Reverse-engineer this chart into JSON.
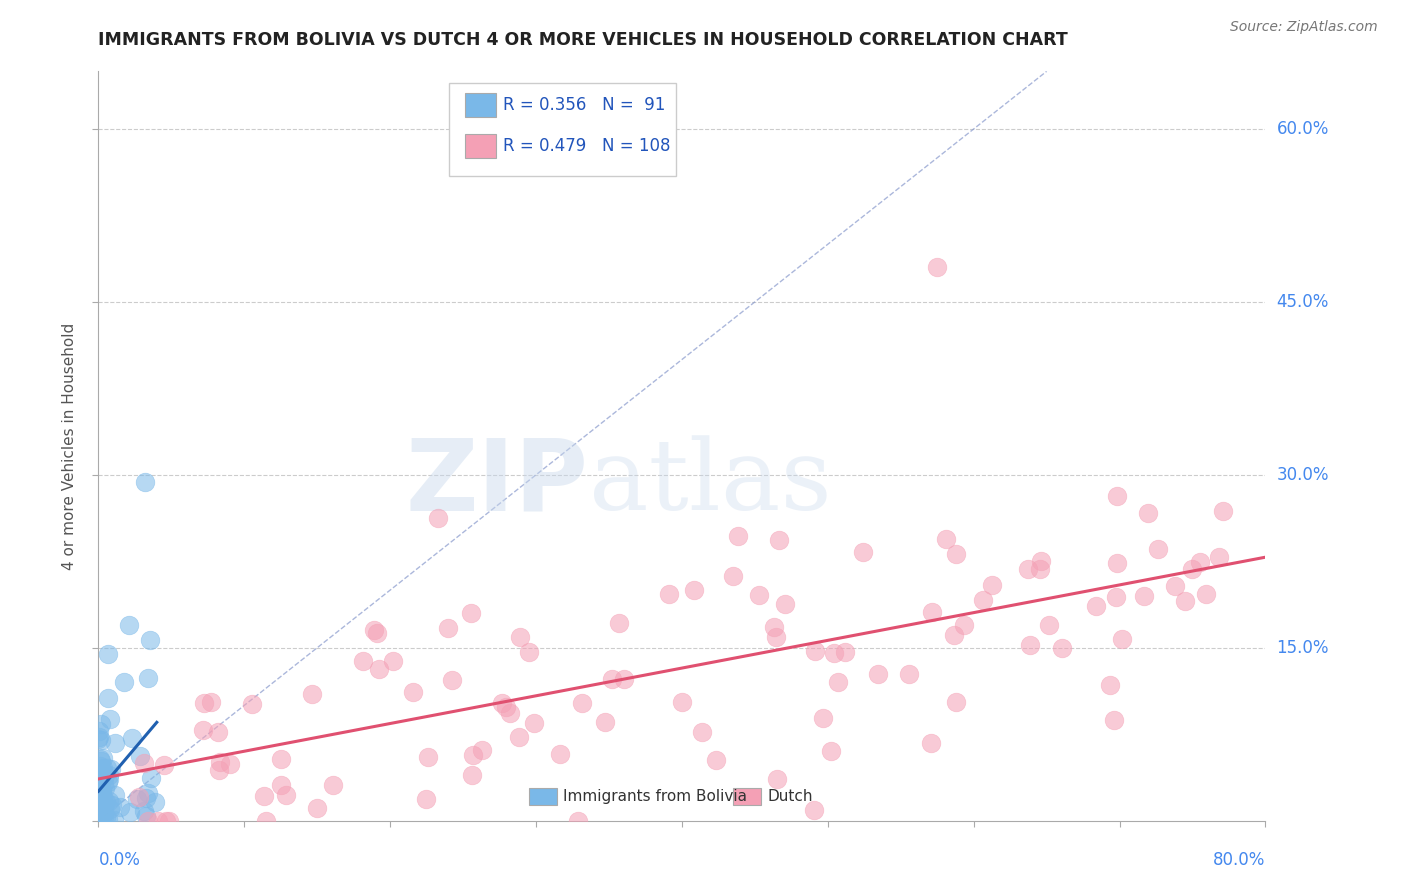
{
  "title": "IMMIGRANTS FROM BOLIVIA VS DUTCH 4 OR MORE VEHICLES IN HOUSEHOLD CORRELATION CHART",
  "source": "Source: ZipAtlas.com",
  "ylabel_label": "4 or more Vehicles in Household",
  "legend_entries": [
    {
      "label": "Immigrants from Bolivia",
      "R": "0.356",
      "N": " 91",
      "color": "#aac4e8"
    },
    {
      "label": "Dutch",
      "R": "0.479",
      "N": "108",
      "color": "#f4a0b5"
    }
  ],
  "xlim": [
    0.0,
    0.8
  ],
  "ylim": [
    0.0,
    0.65
  ],
  "bolivia_color": "#7ab8e8",
  "dutch_color": "#f4a0b5",
  "bolivia_line_color": "#2060b0",
  "dutch_line_color": "#e05070",
  "ref_line_color": "#8899cc",
  "watermark_zip": "ZIP",
  "watermark_atlas": "atlas",
  "background_color": "#ffffff",
  "title_fontsize": 12.5,
  "label_fontsize": 11,
  "right_label_color": "#4488ee",
  "source_color": "#777777"
}
